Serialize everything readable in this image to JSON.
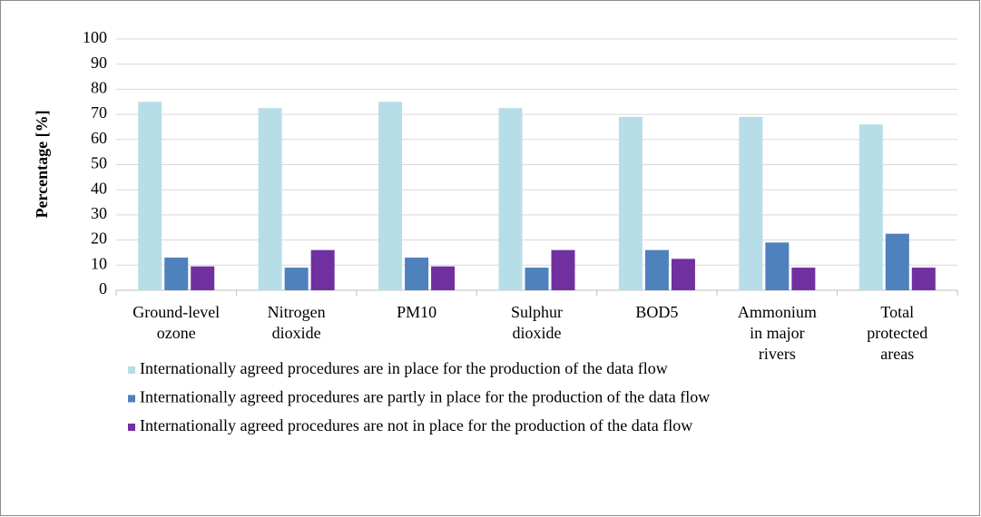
{
  "chart_data": {
    "type": "bar",
    "y_label": "Percentage [%]",
    "categories": [
      "Ground-level\nozone",
      "Nitrogen\ndioxide",
      "PM10",
      "Sulphur\ndioxide",
      "BOD5",
      "Ammonium\nin major\nrivers",
      "Total\nprotected\nareas"
    ],
    "series": [
      {
        "name": "Internationally agreed procedures are in place for the production of the data flow",
        "color": "#b7dee8",
        "values": [
          75,
          72.5,
          75,
          72.5,
          69,
          69,
          66
        ]
      },
      {
        "name": "Internationally agreed procedures are partly in place for the production of the data flow",
        "color": "#4f81bd",
        "values": [
          13,
          9,
          13,
          9,
          16,
          19,
          22.5
        ]
      },
      {
        "name": "Internationally agreed procedures are not in place for the production of the data flow",
        "color": "#7030a0",
        "values": [
          9.5,
          16,
          9.5,
          16,
          12.5,
          9,
          9
        ]
      }
    ],
    "ylim": [
      0,
      100
    ],
    "yticks": [
      0,
      10,
      20,
      30,
      40,
      50,
      60,
      70,
      80,
      90,
      100
    ],
    "grid": true,
    "legend": "bottom"
  }
}
